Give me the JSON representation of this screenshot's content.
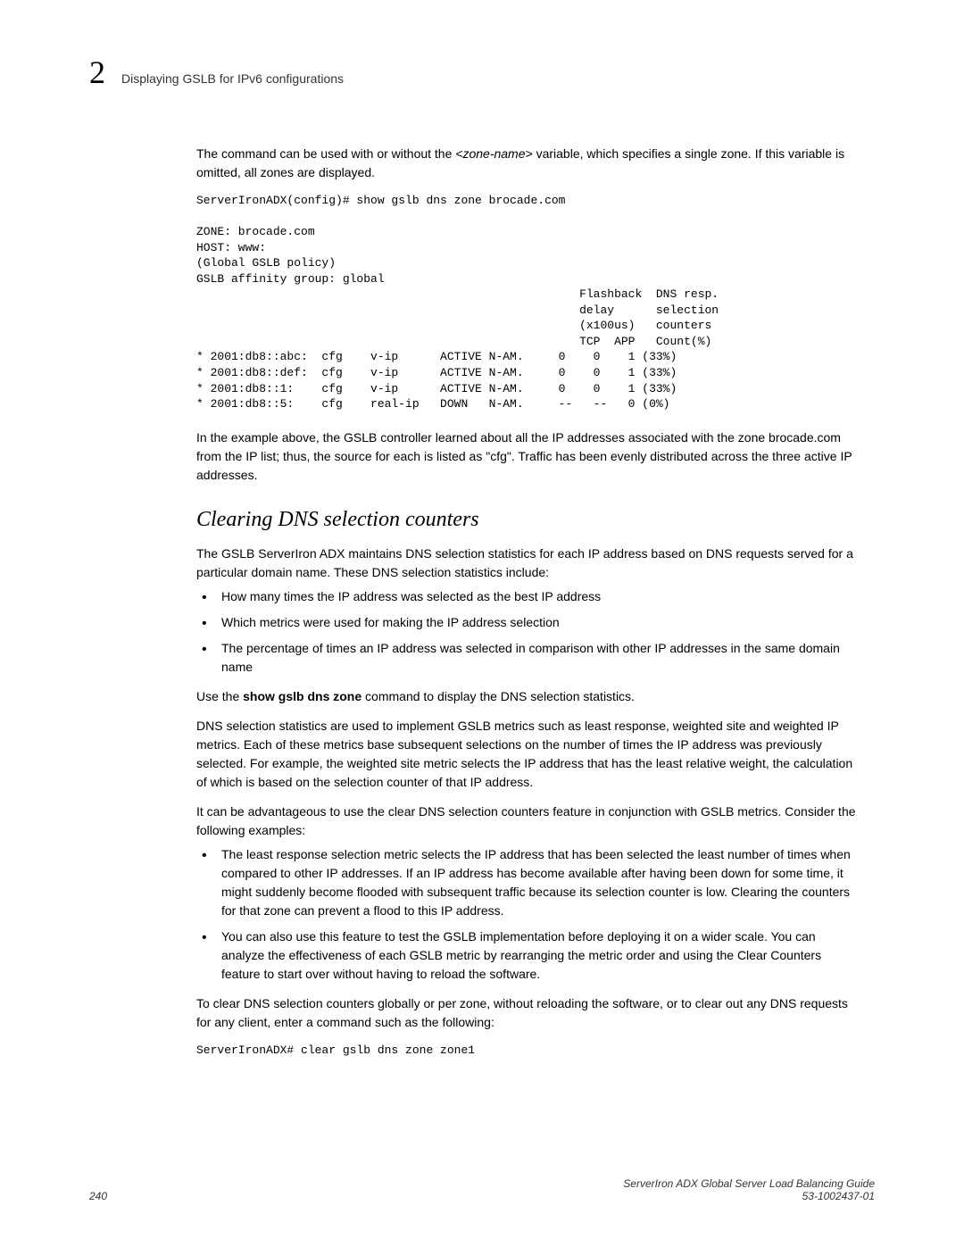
{
  "header": {
    "chapter_num": "2",
    "title": "Displaying GSLB for IPv6 configurations"
  },
  "intro": {
    "p1_pre": "The command can be used with or without the ",
    "p1_var": "<zone-name>",
    "p1_post": " variable, which specifies a single zone. If this variable is omitted, all zones are displayed."
  },
  "terminal_output": "ServerIronADX(config)# show gslb dns zone brocade.com\n\nZONE: brocade.com\nHOST: www:\n(Global GSLB policy)\nGSLB affinity group: global\n                                                       Flashback  DNS resp.\n                                                       delay      selection\n                                                       (x100us)   counters\n                                                       TCP  APP   Count(%)\n* 2001:db8::abc:  cfg    v-ip      ACTIVE N-AM.     0    0    1 (33%)\n* 2001:db8::def:  cfg    v-ip      ACTIVE N-AM.     0    0    1 (33%)\n* 2001:db8::1:    cfg    v-ip      ACTIVE N-AM.     0    0    1 (33%)\n* 2001:db8::5:    cfg    real-ip   DOWN   N-AM.     --   --   0 (0%)",
  "after_terminal_p": "In the example above, the GSLB controller learned about all the IP addresses associated with the zone brocade.com from the IP list; thus, the source for each is listed as \"cfg\". Traffic has been evenly distributed across the three active IP addresses.",
  "section_heading": "Clearing DNS selection counters",
  "body": {
    "p1": "The GSLB ServerIron ADX maintains DNS selection statistics for each IP address based on DNS requests served for a particular domain name. These DNS selection statistics include:",
    "bullets1": [
      "How many times the IP address was selected as the best IP address",
      "Which metrics were used for making the IP address selection",
      "The percentage of times an IP address was selected in comparison with other IP addresses in the same domain name"
    ],
    "p2_pre": "Use the ",
    "p2_bold": "show gslb dns zone",
    "p2_post": " command to display the DNS selection statistics.",
    "p3": "DNS selection statistics are used to implement GSLB metrics such as least response, weighted site and weighted IP metrics. Each of these metrics base subsequent selections on the number of times the IP address was previously selected. For example, the weighted site metric selects the IP address that has the least relative weight, the calculation of which is based on the selection counter of that IP address.",
    "p4": "It can be advantageous to use the clear DNS selection counters feature in conjunction with GSLB metrics. Consider the following examples:",
    "bullets2": [
      "The least response selection metric selects the IP address that has been selected the least number of times when compared to other IP addresses. If an IP address has become available after having been down for some time, it might suddenly become flooded with subsequent traffic because its selection counter is low. Clearing the counters for that zone can prevent a flood to this IP address.",
      "You can also use this feature to test the GSLB implementation before deploying it on a wider scale. You can analyze the effectiveness of each GSLB metric by rearranging the metric order and using the Clear Counters feature to start over without having to reload the software."
    ],
    "p5": "To clear DNS selection counters globally or per zone, without reloading the software, or to clear out any DNS requests for any client, enter a command such as the following:",
    "cmd": "ServerIronADX# clear gslb dns zone zone1"
  },
  "footer": {
    "page_num": "240",
    "doc_title": "ServerIron ADX Global Server Load Balancing Guide",
    "doc_id": "53-1002437-01"
  }
}
